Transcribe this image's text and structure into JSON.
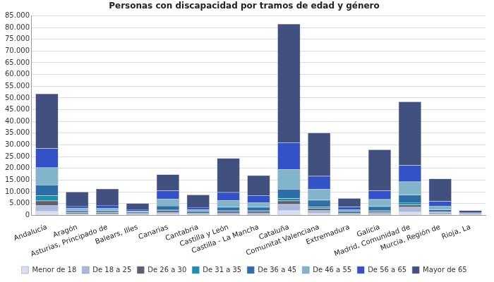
{
  "chart_data": {
    "type": "bar",
    "title": "Personas con discapacidad por tramos de edad y género",
    "stacked": true,
    "grid": true,
    "legend": "bottom",
    "categories": [
      "Andalucía",
      "Aragón",
      "Asturias, Principado de",
      "Balears, Illes",
      "Canarias",
      "Cantabria",
      "Castilla y León",
      "Castilla - La Mancha",
      "Cataluña",
      "Comunitat Valenciana",
      "Extremadura",
      "Galicia",
      "Madrid, Comunidad de",
      "Murcia, Región de",
      "Rioja, La"
    ],
    "series": [
      {
        "name": "Menor de 18",
        "color": "#d9dff0",
        "values": [
          1800,
          300,
          300,
          200,
          500,
          200,
          400,
          400,
          2000,
          900,
          200,
          400,
          1500,
          300,
          100
        ]
      },
      {
        "name": "De 18 a 25",
        "color": "#a9b9de",
        "values": [
          2500,
          400,
          400,
          300,
          800,
          300,
          600,
          600,
          2700,
          1300,
          300,
          700,
          2000,
          500,
          100
        ]
      },
      {
        "name": "De 26 a 30",
        "color": "#5f5f6e",
        "values": [
          1900,
          400,
          400,
          300,
          700,
          300,
          600,
          600,
          1500,
          800,
          300,
          600,
          1000,
          400,
          100
        ]
      },
      {
        "name": "De 31 a 35",
        "color": "#1a8fae",
        "values": [
          2200,
          300,
          300,
          200,
          500,
          200,
          400,
          400,
          1000,
          600,
          200,
          500,
          1000,
          300,
          100
        ]
      },
      {
        "name": "De 36 a 45",
        "color": "#2c6ea8",
        "values": [
          4600,
          700,
          700,
          400,
          1500,
          600,
          1500,
          1500,
          4000,
          2900,
          600,
          1600,
          3200,
          900,
          200
        ]
      },
      {
        "name": "De 46 a 55",
        "color": "#82b4cc",
        "values": [
          7300,
          900,
          1000,
          500,
          3000,
          800,
          2800,
          2000,
          8300,
          4700,
          900,
          3000,
          5600,
          1600,
          200
        ]
      },
      {
        "name": "De 56 a 65",
        "color": "#3352c8",
        "values": [
          8200,
          1000,
          1200,
          600,
          3500,
          1000,
          3500,
          3000,
          11500,
          5500,
          1100,
          3700,
          7000,
          2000,
          300
        ]
      },
      {
        "name": "Mayor de 65",
        "color": "#42507f",
        "values": [
          23300,
          6000,
          7000,
          2600,
          6900,
          5400,
          14500,
          8500,
          50500,
          18400,
          3700,
          17500,
          27100,
          9600,
          1000
        ]
      }
    ],
    "ylim": [
      0,
      85000
    ],
    "yticks": [
      0,
      {
        "value": 5000,
        "label": "5.000"
      },
      {
        "value": 10000,
        "label": "10.000"
      },
      {
        "value": 15000,
        "label": "15.000"
      },
      {
        "value": 20000,
        "label": "20.000"
      },
      {
        "value": 25000,
        "label": "25.000"
      },
      {
        "value": 30000,
        "label": "30.000"
      },
      {
        "value": 35000,
        "label": "35.000"
      },
      {
        "value": 40000,
        "label": "40.000"
      },
      {
        "value": 45000,
        "label": "45.000"
      },
      {
        "value": 50000,
        "label": "50.000"
      },
      {
        "value": 55000,
        "label": "55.000"
      },
      {
        "value": 60000,
        "label": "60.000"
      },
      {
        "value": 65000,
        "label": "65.000"
      },
      {
        "value": 70000,
        "label": "70.000"
      },
      {
        "value": 75000,
        "label": "75.000"
      },
      {
        "value": 80000,
        "label": "80.000"
      },
      {
        "value": 85000,
        "label": "85.000"
      }
    ]
  }
}
